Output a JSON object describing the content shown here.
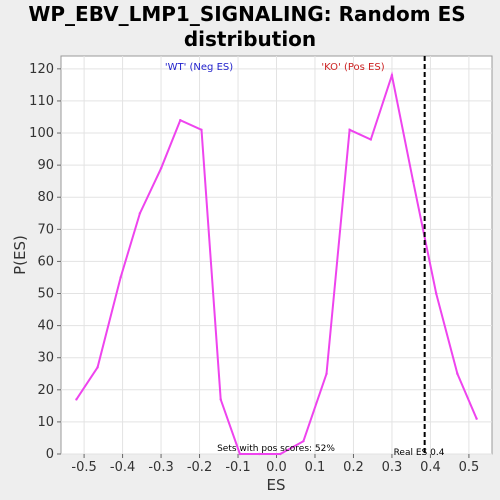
{
  "chart_data": {
    "type": "line",
    "title_lines": [
      "WP_EBV_LMP1_SIGNALING: Random ES",
      "distribution"
    ],
    "xlabel": "ES",
    "ylabel": "P(ES)",
    "xlim": [
      -0.56,
      0.56
    ],
    "ylim": [
      0,
      124
    ],
    "x_ticks": [
      -0.5,
      -0.4,
      -0.3,
      -0.2,
      -0.1,
      0.0,
      0.1,
      0.2,
      0.3,
      0.4,
      0.5
    ],
    "x_tick_labels": [
      "-0.5",
      "-0.4",
      "-0.3",
      "-0.2",
      "-0.1",
      "0.0",
      "0.1",
      "0.2",
      "0.3",
      "0.4",
      "0.5"
    ],
    "y_ticks": [
      0,
      10,
      20,
      30,
      40,
      50,
      60,
      70,
      80,
      90,
      100,
      110,
      120
    ],
    "y_tick_labels": [
      "0",
      "10",
      "20",
      "30",
      "40",
      "50",
      "60",
      "70",
      "80",
      "90",
      "100",
      "110",
      "120"
    ],
    "grid": true,
    "series": [
      {
        "color": "#ee44ee",
        "x": [
          -0.52,
          -0.465,
          -0.405,
          -0.355,
          -0.3,
          -0.25,
          -0.195,
          -0.145,
          -0.095,
          -0.045,
          0.01,
          0.07,
          0.13,
          0.19,
          0.245,
          0.3,
          0.355,
          0.415,
          0.47,
          0.52
        ],
        "y": [
          17,
          27,
          55,
          75,
          89,
          104,
          101,
          17,
          0,
          0,
          0,
          4,
          25,
          101,
          98,
          118,
          85,
          50,
          25,
          11
        ]
      }
    ],
    "real_es": 0.385,
    "real_es_label": "Real ES 0.4",
    "annotations": {
      "neg_label": "'WT' (Neg ES)",
      "neg_color": "#2222cc",
      "pos_label": "'KO' (Pos ES)",
      "pos_color": "#cc2222",
      "pos_scores_text": "Sets with pos scores: 52%"
    }
  }
}
